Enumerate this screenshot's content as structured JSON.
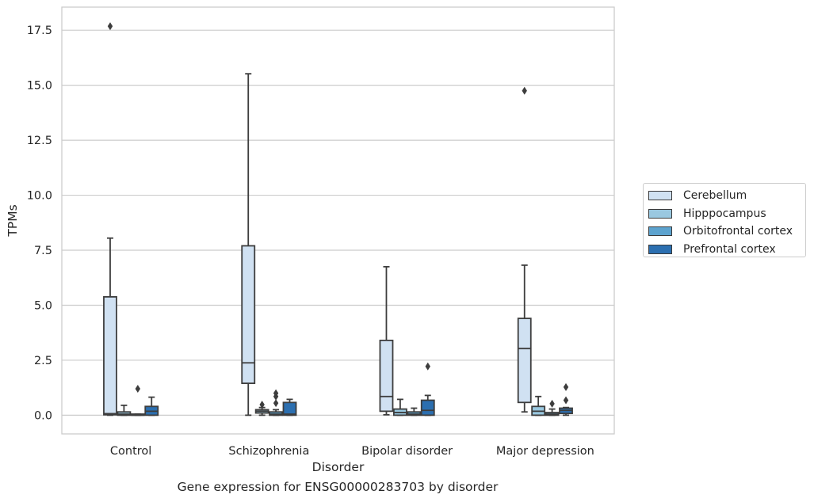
{
  "chart_data": {
    "type": "box",
    "xlabel": "Disorder",
    "ylabel": "TPMs",
    "ylim": [
      -0.85,
      18.55
    ],
    "yticks": [
      "0.0",
      "2.5",
      "5.0",
      "7.5",
      "10.0",
      "12.5",
      "15.0",
      "17.5"
    ],
    "ytick_values": [
      0,
      2.5,
      5,
      7.5,
      10,
      12.5,
      15,
      17.5
    ],
    "grid": "horizontal",
    "legend_position": "outside-right",
    "categories": [
      "Control",
      "Schizophrenia",
      "Bipolar disorder",
      "Major depression"
    ],
    "series": [
      {
        "name": "Cerebellum",
        "color": "#d0e1f2",
        "boxes": [
          {
            "whislo": 0.0,
            "q1": 0.02,
            "med": 0.07,
            "q3": 5.38,
            "whishi": 8.05,
            "fliers": [
              17.68
            ]
          },
          {
            "whislo": 0.0,
            "q1": 1.45,
            "med": 2.38,
            "q3": 7.7,
            "whishi": 15.52,
            "fliers": []
          },
          {
            "whislo": 0.02,
            "q1": 0.18,
            "med": 0.85,
            "q3": 3.4,
            "whishi": 6.75,
            "fliers": []
          },
          {
            "whislo": 0.15,
            "q1": 0.58,
            "med": 3.03,
            "q3": 4.4,
            "whishi": 6.82,
            "fliers": [
              14.75
            ]
          }
        ]
      },
      {
        "name": "Hipppocampus",
        "color": "#9ac8e0",
        "boxes": [
          {
            "whislo": 0.0,
            "q1": 0.0,
            "med": 0.05,
            "q3": 0.15,
            "whishi": 0.45,
            "fliers": []
          },
          {
            "whislo": 0.0,
            "q1": 0.1,
            "med": 0.18,
            "q3": 0.25,
            "whishi": 0.35,
            "fliers": [
              0.48
            ]
          },
          {
            "whislo": 0.0,
            "q1": 0.0,
            "med": 0.12,
            "q3": 0.28,
            "whishi": 0.72,
            "fliers": []
          },
          {
            "whislo": 0.0,
            "q1": 0.0,
            "med": 0.18,
            "q3": 0.4,
            "whishi": 0.85,
            "fliers": []
          }
        ]
      },
      {
        "name": "Orbitofrontal cortex",
        "color": "#5da3cf",
        "boxes": [
          {
            "whislo": 0.0,
            "q1": 0.0,
            "med": 0.0,
            "q3": 0.05,
            "whishi": 0.05,
            "fliers": [
              1.2
            ]
          },
          {
            "whislo": 0.0,
            "q1": 0.0,
            "med": 0.05,
            "q3": 0.15,
            "whishi": 0.25,
            "fliers": [
              0.55,
              0.85,
              1.0
            ]
          },
          {
            "whislo": 0.0,
            "q1": 0.0,
            "med": 0.05,
            "q3": 0.15,
            "whishi": 0.32,
            "fliers": []
          },
          {
            "whislo": 0.0,
            "q1": 0.0,
            "med": 0.05,
            "q3": 0.12,
            "whishi": 0.28,
            "fliers": [
              0.52
            ]
          }
        ]
      },
      {
        "name": "Prefrontal cortex",
        "color": "#2c6fb0",
        "boxes": [
          {
            "whislo": 0.0,
            "q1": 0.0,
            "med": 0.18,
            "q3": 0.4,
            "whishi": 0.82,
            "fliers": []
          },
          {
            "whislo": 0.0,
            "q1": 0.0,
            "med": 0.05,
            "q3": 0.58,
            "whishi": 0.72,
            "fliers": []
          },
          {
            "whislo": 0.0,
            "q1": 0.0,
            "med": 0.22,
            "q3": 0.68,
            "whishi": 0.9,
            "fliers": [
              2.22
            ]
          },
          {
            "whislo": 0.0,
            "q1": 0.08,
            "med": 0.22,
            "q3": 0.32,
            "whishi": 0.35,
            "fliers": [
              0.68,
              1.28
            ]
          }
        ]
      }
    ]
  },
  "caption": "Gene expression for ENSG00000283703 by disorder"
}
